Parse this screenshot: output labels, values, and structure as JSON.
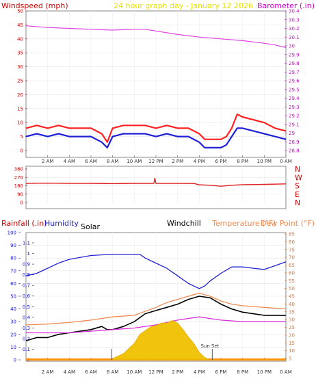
{
  "colors": {
    "wind_avg": "#1f1fd6",
    "wind_gust": "#ff2020",
    "barometer": "#e040e0",
    "direction": "#e02020",
    "humidity": "#2020d0",
    "temperature": "#f08a50",
    "dewpoint": "#000000",
    "windchill": "#d830d8",
    "solar": "#f0c000",
    "rain_axis": "#1010c0",
    "left_axis": "#cc0000",
    "right_axis": "#cc00cc",
    "temp_axis": "#e07030",
    "title": "#e8e000"
  },
  "chart_data": [
    {
      "type": "line",
      "title": "24 hour graph day - January 12 2026",
      "left_label": "Windspeed (mph)",
      "right_label": "Barometer (.in)",
      "x_ticks": [
        "2 AM",
        "4 AM",
        "6 AM",
        "8 AM",
        "10 AM",
        "12 PM",
        "2 PM",
        "4 PM",
        "6 PM",
        "8 PM",
        "10 PM",
        "0 AM"
      ],
      "left_ticks": [
        "0",
        "5",
        "10",
        "15",
        "20",
        "25",
        "30",
        "35",
        "40",
        "45",
        "50"
      ],
      "right_ticks": [
        "28.8",
        "28.9",
        "29",
        "29.1",
        "29.2",
        "29.3",
        "29.4",
        "29.5",
        "29.6",
        "29.7",
        "29.8",
        "29.9",
        "30",
        "30.1",
        "30.2",
        "30.3",
        "30.4"
      ],
      "ylim_left": [
        0,
        50
      ],
      "ylim_right": [
        28.8,
        30.4
      ],
      "x_range_hours": [
        0,
        24
      ],
      "series": [
        {
          "key": "barometer",
          "axis": "right",
          "hours": [
            0,
            2,
            4,
            6,
            8,
            10,
            11,
            12,
            14,
            16,
            18,
            20,
            22,
            23,
            24
          ],
          "values": [
            30.23,
            30.21,
            30.2,
            30.19,
            30.18,
            30.19,
            30.19,
            30.17,
            30.13,
            30.1,
            30.08,
            30.06,
            30.03,
            30.01,
            29.98
          ]
        },
        {
          "key": "wind_gust",
          "axis": "left",
          "hours": [
            0,
            1,
            2,
            3,
            4,
            5,
            6,
            7,
            7.5,
            8,
            9,
            10,
            11,
            12,
            13,
            14,
            15,
            16,
            16.5,
            17,
            17.5,
            18,
            18.5,
            19,
            19.5,
            20,
            21,
            22,
            23,
            24
          ],
          "values": [
            8,
            9,
            8,
            9,
            8,
            8,
            8,
            6,
            3,
            8,
            9,
            9,
            9,
            8,
            9,
            8,
            8,
            6,
            4,
            4,
            4,
            4,
            5,
            8,
            13,
            12,
            11,
            10,
            8,
            7
          ]
        },
        {
          "key": "wind_avg",
          "axis": "left",
          "hours": [
            0,
            1,
            2,
            3,
            4,
            5,
            6,
            7,
            7.5,
            8,
            9,
            10,
            11,
            12,
            13,
            14,
            15,
            16,
            16.5,
            17,
            17.5,
            18,
            18.5,
            19,
            19.5,
            20,
            21,
            22,
            23,
            24
          ],
          "values": [
            5,
            6,
            5,
            6,
            5,
            5,
            5,
            3,
            1,
            5,
            6,
            6,
            6,
            5,
            6,
            5,
            5,
            3,
            1,
            1,
            1,
            1,
            2,
            5,
            8,
            8,
            7,
            6,
            5,
            4
          ]
        }
      ]
    },
    {
      "type": "line",
      "title": "",
      "left_ticks": [
        "0",
        "90",
        "180",
        "270",
        "360"
      ],
      "compass": [
        "N",
        "W",
        "S",
        "E",
        "N"
      ],
      "ylim": [
        0,
        360
      ],
      "x_range_hours": [
        0,
        24
      ],
      "x_ticks": [],
      "series": [
        {
          "key": "direction",
          "hours": [
            0,
            2,
            4,
            6,
            8,
            10,
            11.8,
            11.9,
            12,
            14,
            15.5,
            16,
            17,
            18,
            19,
            20,
            22,
            24
          ],
          "values": [
            205,
            208,
            205,
            206,
            203,
            206,
            205,
            260,
            205,
            205,
            204,
            190,
            185,
            175,
            185,
            192,
            195,
            200
          ]
        }
      ]
    },
    {
      "type": "line",
      "title": "",
      "labels": {
        "rain": "Rainfall (.in)",
        "humidity": "Humidity",
        "solar": "Solar",
        "windchill": "Windchill",
        "temperature": "Temperature (°F)",
        "dewpoint": "Dew Point (°F)"
      },
      "annotation": "Sun Set",
      "x_ticks": [
        "2 AM",
        "4 AM",
        "6 AM",
        "8 AM",
        "10 AM",
        "12 PM",
        "2 PM",
        "4 PM",
        "6 PM",
        "8 PM",
        "10 PM",
        "0 AM"
      ],
      "humidity_ticks": [
        "0",
        "10",
        "20",
        "30",
        "40",
        "50",
        "60",
        "70",
        "80",
        "90",
        "100"
      ],
      "rain_ticks": [
        "0",
        "0.1",
        "0.2",
        "0.3",
        "0.4",
        "0.5",
        "0.6",
        "0.7",
        "0.8",
        "0.9",
        "1",
        "1.1"
      ],
      "temp_ticks": [
        "5",
        "10",
        "15",
        "20",
        "25",
        "30",
        "35",
        "40",
        "45",
        "50",
        "55",
        "60",
        "65",
        "70",
        "75",
        "80",
        "85"
      ],
      "ylim_humidity": [
        0,
        100
      ],
      "ylim_rain": [
        0,
        1.1
      ],
      "ylim_temp": [
        5,
        85
      ],
      "x_range_hours": [
        0,
        24
      ],
      "series": [
        {
          "key": "humidity",
          "axis": "humidity",
          "hours": [
            0,
            1,
            2,
            3,
            4,
            6,
            8,
            10,
            10.5,
            11,
            12,
            13,
            14,
            15,
            16,
            16.5,
            17,
            18,
            19,
            20,
            21,
            22,
            23,
            24
          ],
          "values": [
            66,
            68,
            72,
            76,
            79,
            82,
            83,
            83,
            83,
            80,
            76,
            72,
            66,
            60,
            56,
            58,
            62,
            68,
            73,
            73,
            72,
            71,
            74,
            77
          ]
        },
        {
          "key": "temperature",
          "axis": "temp",
          "hours": [
            0,
            2,
            4,
            6,
            8,
            10,
            12,
            13,
            14,
            15,
            16,
            17,
            18,
            19,
            20,
            22,
            24
          ],
          "values": [
            27,
            27.5,
            28.5,
            30,
            32,
            33,
            38,
            41,
            43,
            45,
            47,
            45,
            42,
            40,
            39,
            38,
            37
          ]
        },
        {
          "key": "dewpoint",
          "axis": "temp",
          "hours": [
            0,
            1,
            2,
            3,
            4,
            5,
            6,
            7,
            7.5,
            8,
            9,
            10,
            11,
            12,
            13,
            14,
            15,
            16,
            17,
            18,
            19,
            20,
            22,
            24
          ],
          "values": [
            17,
            19,
            19,
            21,
            22,
            23,
            24,
            26,
            24,
            24,
            26,
            29,
            34,
            36,
            38,
            40,
            43,
            45,
            44,
            40,
            37,
            35,
            33,
            33
          ]
        },
        {
          "key": "windchill",
          "axis": "temp",
          "hours": [
            0,
            2,
            4,
            6,
            8,
            10,
            12,
            14,
            16,
            17,
            18,
            20,
            22,
            24
          ],
          "values": [
            22,
            22,
            22,
            23,
            24,
            25,
            27,
            30,
            32,
            31,
            30,
            29,
            29,
            29
          ]
        },
        {
          "key": "solar",
          "axis": "humidity",
          "hours": [
            8,
            9,
            10,
            10.5,
            11,
            11.5,
            12,
            12.5,
            13,
            13.5,
            14,
            14.5,
            15,
            15.5,
            16,
            16.5,
            17
          ],
          "values": [
            1,
            5,
            13,
            20,
            23,
            26,
            27,
            29,
            29,
            31,
            29,
            24,
            18,
            13,
            6,
            2,
            0
          ]
        }
      ]
    }
  ]
}
